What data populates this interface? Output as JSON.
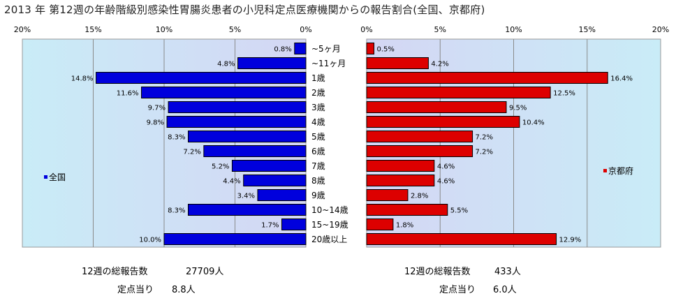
{
  "title": "2013 年 第12週の年齢階級別感染性胃腸炎患者の小児科定点医療機関からの報告割合(全国、京都府)",
  "chart_data": {
    "type": "bar",
    "orientation": "horizontal",
    "categories": [
      "~5ヶ月",
      "~11ヶ月",
      "1歳",
      "2歳",
      "3歳",
      "4歳",
      "5歳",
      "6歳",
      "7歳",
      "8歳",
      "9歳",
      "10~14歳",
      "15~19歳",
      "20歳以上"
    ],
    "left_panel": {
      "xlim": [
        20,
        0
      ],
      "ticks": [
        "20%",
        "15%",
        "10%",
        "5%",
        "0%"
      ],
      "series": [
        {
          "name": "全国",
          "color": "#0000dd",
          "values": [
            0.8,
            4.8,
            14.8,
            11.6,
            9.7,
            9.8,
            8.3,
            7.2,
            5.2,
            4.4,
            3.4,
            8.3,
            1.7,
            10.0
          ]
        }
      ],
      "data_labels": [
        "0.8%",
        "4.8%",
        "14.8%",
        "11.6%",
        "9.7%",
        "9.8%",
        "8.3%",
        "7.2%",
        "5.2%",
        "4.4%",
        "3.4%",
        "8.3%",
        "1.7%",
        "10.0%"
      ],
      "legend": "全国"
    },
    "right_panel": {
      "xlim": [
        0,
        20
      ],
      "ticks": [
        "0%",
        "5%",
        "10%",
        "15%",
        "20%"
      ],
      "series": [
        {
          "name": "京都府",
          "color": "#dd0000",
          "values": [
            0.5,
            4.2,
            16.4,
            12.5,
            9.5,
            10.4,
            7.2,
            7.2,
            4.6,
            4.6,
            2.8,
            5.5,
            1.8,
            12.9
          ]
        }
      ],
      "data_labels": [
        "0.5%",
        "4.2%",
        "16.4%",
        "12.5%",
        "9.5%",
        "10.4%",
        "7.2%",
        "7.2%",
        "4.6%",
        "4.6%",
        "2.8%",
        "5.5%",
        "1.8%",
        "12.9%"
      ],
      "legend": "京都府"
    },
    "grid": true,
    "legend_placement": "inside-left / inside-right"
  },
  "footer": {
    "national": {
      "total_label": "12週の総報告数",
      "total_value": "27709人",
      "per_label": "定点当り",
      "per_value": "8.8人"
    },
    "kyoto": {
      "total_label": "12週の総報告数",
      "total_value": "433人",
      "per_label": "定点当り",
      "per_value": "6.0人"
    }
  }
}
